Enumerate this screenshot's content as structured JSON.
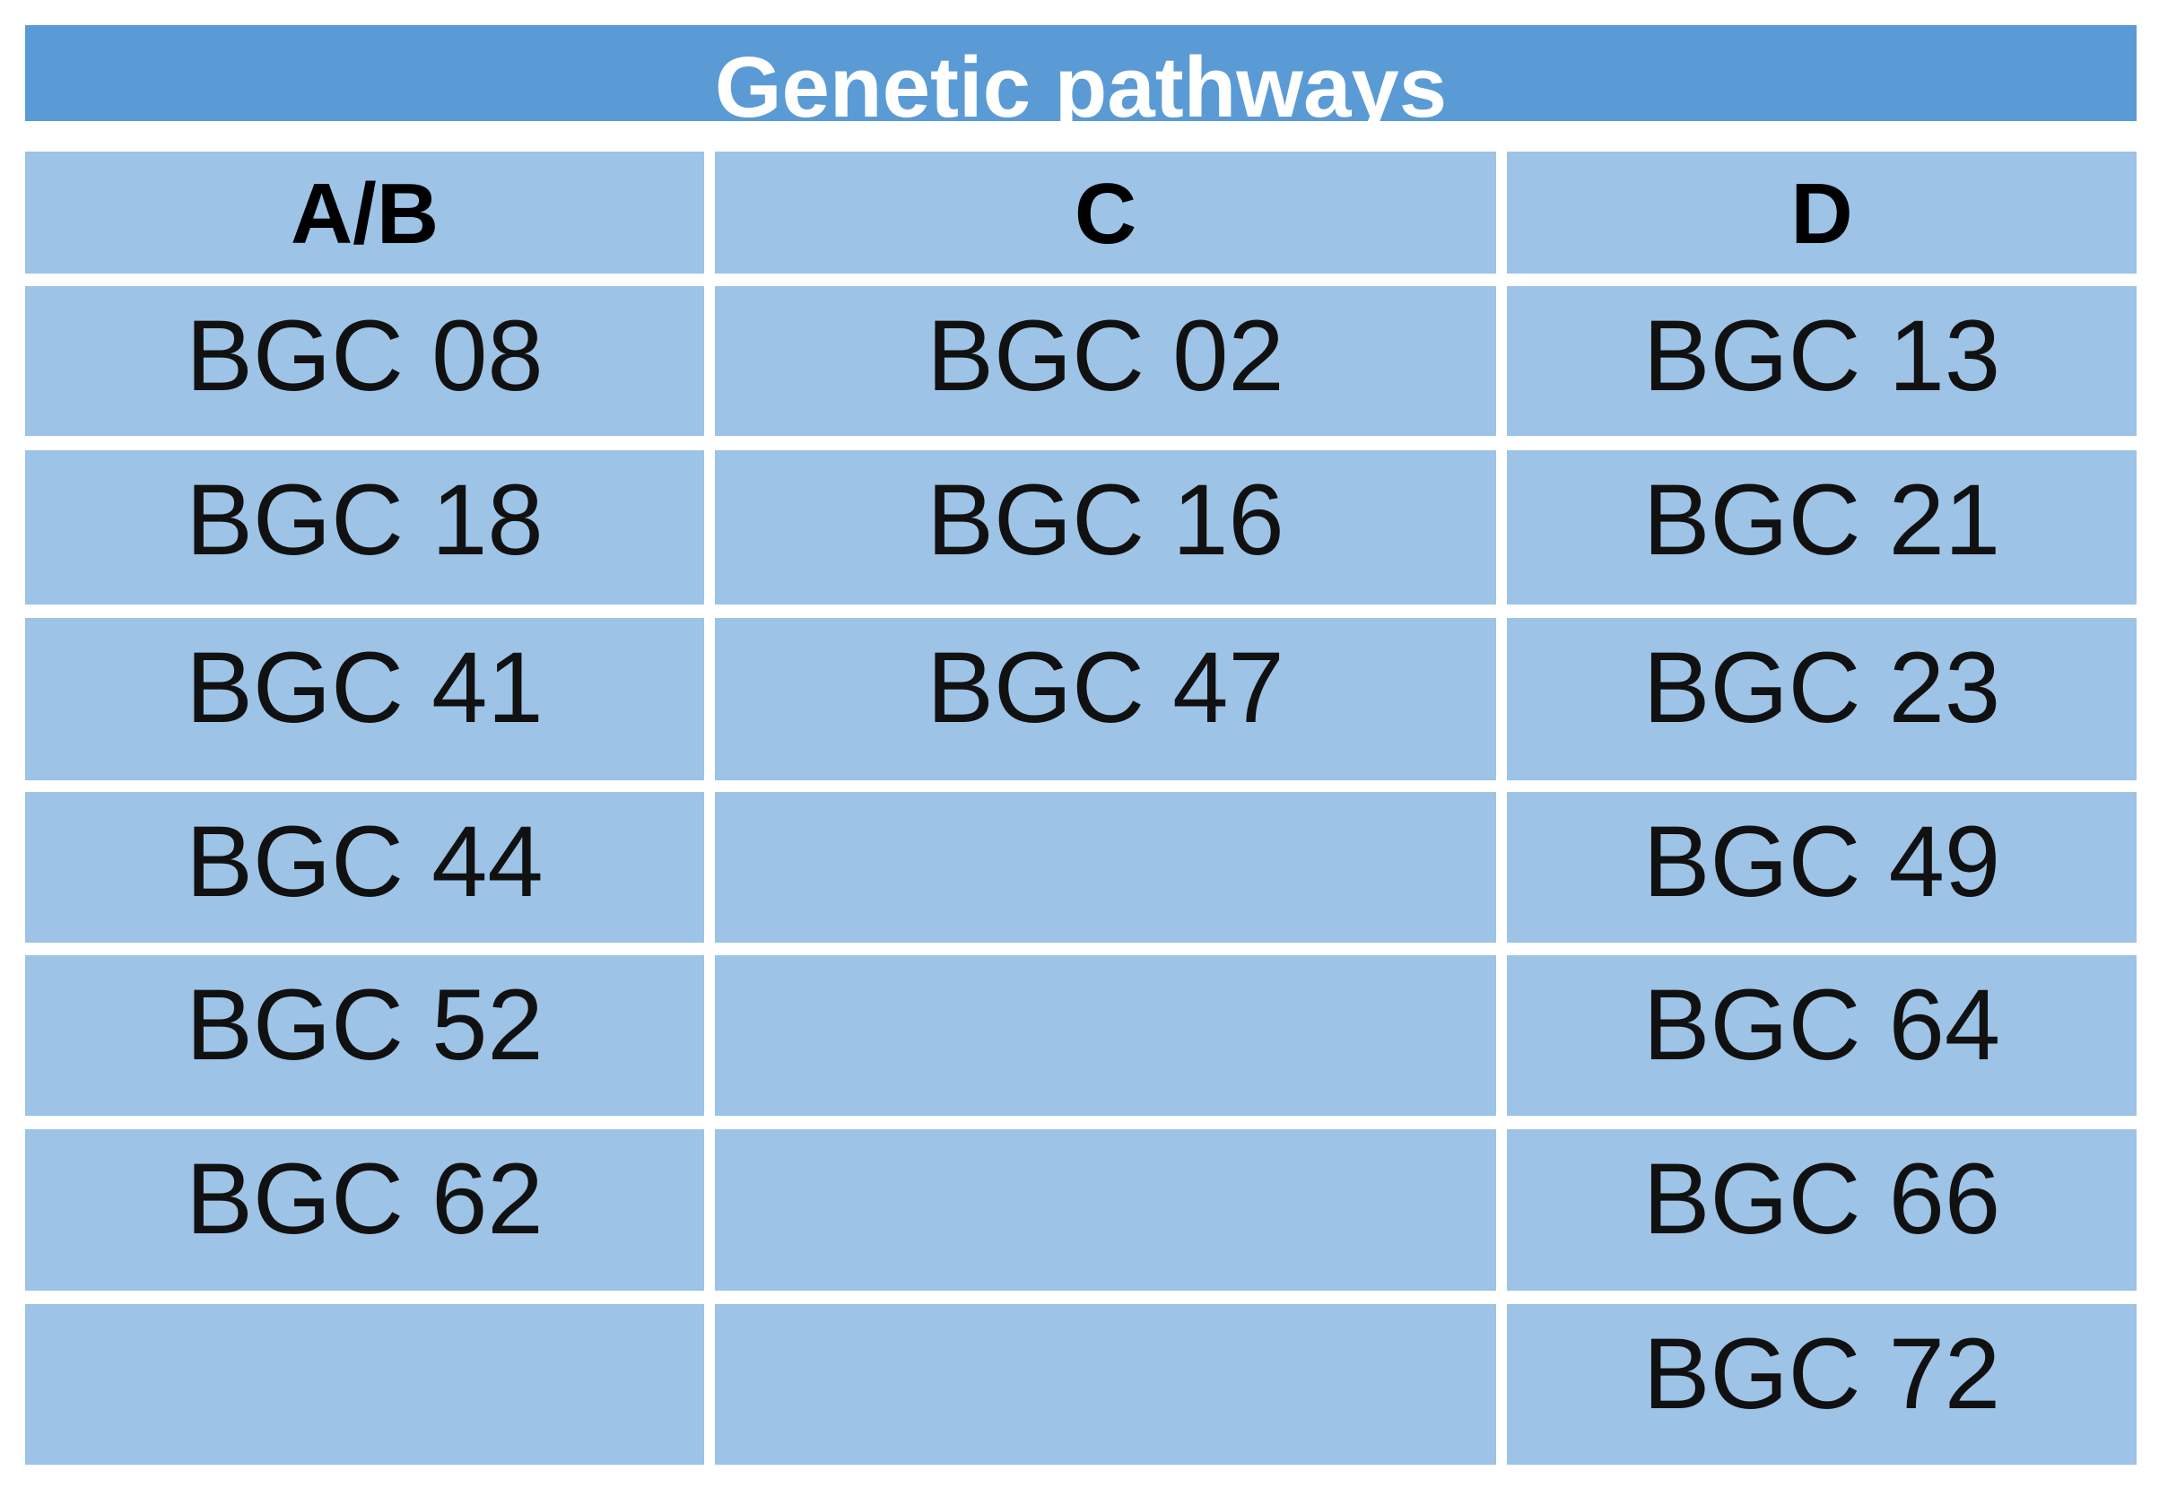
{
  "title": "Genetic pathways",
  "table": {
    "header": [
      "A/B",
      "C",
      "D"
    ],
    "rows": [
      [
        "BGC 08",
        "BGC 02",
        "BGC 13"
      ],
      [
        "BGC 18",
        "BGC 16",
        "BGC 21"
      ],
      [
        "BGC 41",
        "BGC 47",
        "BGC 23"
      ],
      [
        "BGC 44",
        null,
        "BGC 49"
      ],
      [
        "BGC 52",
        null,
        "BGC 64"
      ],
      [
        "BGC 62",
        null,
        "BGC 66"
      ],
      [
        null,
        null,
        "BGC 72"
      ]
    ]
  }
}
